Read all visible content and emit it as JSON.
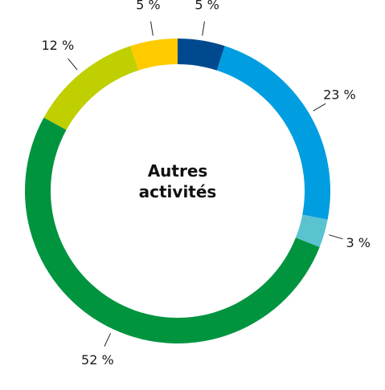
{
  "chart_data": {
    "type": "donut",
    "title": "Autres activités",
    "values": [
      5,
      23,
      3,
      52,
      12,
      5
    ],
    "value_labels": [
      "5 %",
      "23 %",
      "3 %",
      "52 %",
      "12 %",
      "5 %"
    ],
    "colors": [
      "#00498f",
      "#009ee0",
      "#5bc2d0",
      "#00943f",
      "#bfcf00",
      "#fecb00"
    ]
  }
}
